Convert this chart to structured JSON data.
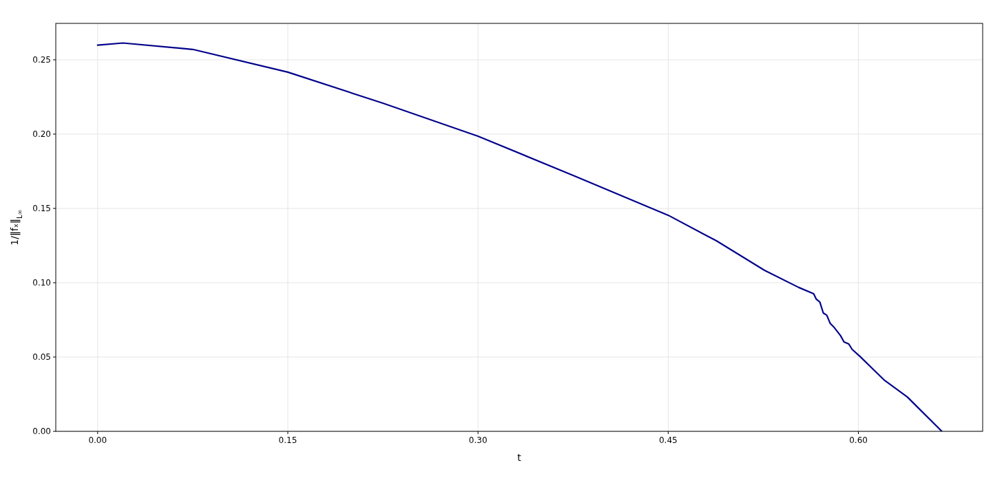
{
  "chart_data": {
    "type": "line",
    "xlabel": "t",
    "ylabel": "1/‖fₓ‖$_{L∞}$",
    "xlim": [
      -0.033,
      0.698
    ],
    "ylim": [
      0,
      0.2745
    ],
    "xticks": [
      {
        "value": 0,
        "label": "0.00"
      },
      0.15,
      {
        "value": 0.3,
        "label": "0.30"
      },
      0.45,
      {
        "value": 0.6,
        "label": "0.60"
      }
    ],
    "yticks": [
      {
        "value": 0,
        "label": "0.00"
      },
      0.05,
      {
        "value": 0.1,
        "label": "0.10"
      },
      0.15,
      {
        "value": 0.2,
        "label": "0.20"
      },
      0.25
    ],
    "grid": true,
    "line_style": "solid",
    "marker": "none",
    "series": [
      {
        "color": "#00008b",
        "x": [
          0,
          0.02,
          0.075,
          0.15,
          0.225,
          0.3,
          0.375,
          0.45,
          0.488,
          0.526,
          0.553,
          0.5647,
          0.5668,
          0.5696,
          0.5723,
          0.575,
          0.5777,
          0.5804,
          0.5859,
          0.5886,
          0.5924,
          0.5951,
          0.6011,
          0.6201,
          0.6386,
          0.6658
        ],
        "values": [
          0.2599,
          0.2613,
          0.257,
          0.2417,
          0.2208,
          0.1986,
          0.1722,
          0.1454,
          0.1282,
          0.1083,
          0.0968,
          0.0926,
          0.0889,
          0.087,
          0.0796,
          0.0782,
          0.0727,
          0.0704,
          0.0644,
          0.0602,
          0.0588,
          0.0551,
          0.0505,
          0.0347,
          0.0231,
          0
        ]
      }
    ]
  }
}
